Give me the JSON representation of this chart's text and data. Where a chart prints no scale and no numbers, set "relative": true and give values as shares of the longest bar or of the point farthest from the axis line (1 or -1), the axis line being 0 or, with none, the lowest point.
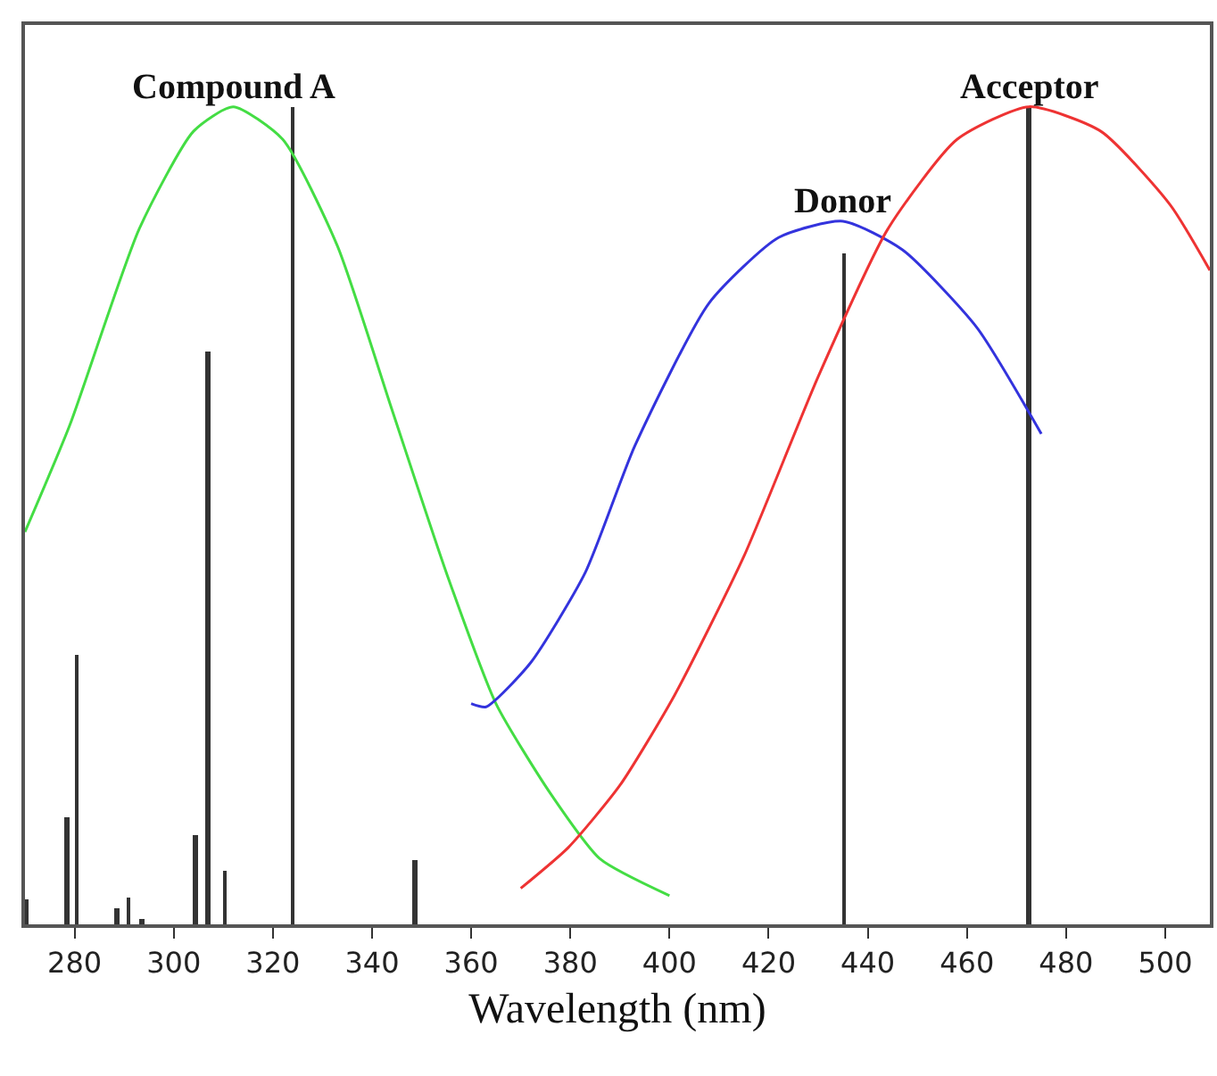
{
  "chart_data": {
    "type": "line",
    "relative": true,
    "xlabel": "Wavelength (nm)",
    "xlim": [
      270,
      509
    ],
    "xticks": [
      280,
      300,
      320,
      340,
      360,
      380,
      400,
      420,
      440,
      460,
      480,
      500
    ],
    "tick_labels": "x",
    "legend": false,
    "marker": "none",
    "line_style": "solid",
    "series": [
      {
        "name": "Compound A",
        "color": "#44dd44",
        "x": [
          270,
          279,
          293,
          304,
          312,
          322,
          333,
          344,
          355,
          365,
          376,
          386,
          400
        ],
        "values": [
          0.48,
          0.61,
          0.85,
          0.97,
          1.0,
          0.96,
          0.83,
          0.63,
          0.43,
          0.27,
          0.16,
          0.08,
          0.035
        ]
      },
      {
        "name": "Donor",
        "color": "#3333dd",
        "x": [
          360,
          363,
          372,
          383,
          393,
          408,
          422,
          435,
          447,
          462,
          475
        ],
        "values": [
          0.27,
          0.266,
          0.32,
          0.43,
          0.585,
          0.76,
          0.84,
          0.86,
          0.825,
          0.73,
          0.6
        ]
      },
      {
        "name": "Acceptor",
        "color": "#ee3333",
        "x": [
          370,
          379.6,
          390,
          401,
          415,
          430,
          444,
          458,
          472.5,
          487,
          501,
          509
        ],
        "values": [
          0.044,
          0.094,
          0.17,
          0.28,
          0.45,
          0.67,
          0.85,
          0.96,
          1.0,
          0.97,
          0.88,
          0.8
        ]
      },
      {
        "type": "bar",
        "color": "#333333",
        "x": [
          270.5,
          278.6,
          280.6,
          288.6,
          291,
          293.6,
          304.4,
          307,
          310.4,
          324,
          348.8,
          435.4,
          472.5
        ],
        "values": [
          0.03,
          0.13,
          0.33,
          0.02,
          0.033,
          0.007,
          0.11,
          0.7,
          0.066,
          1.0,
          0.079,
          0.82,
          1.0
        ]
      }
    ]
  }
}
